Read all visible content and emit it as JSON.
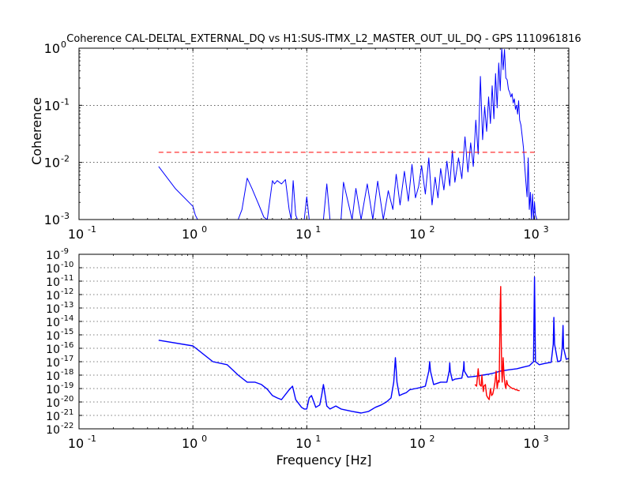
{
  "chart_data": [
    {
      "type": "line",
      "title": "Coherence CAL-DELTAL_EXTERNAL_DQ vs H1:SUS-ITMX_L2_MASTER_OUT_UL_DQ - GPS 1110961816",
      "xlabel": "",
      "ylabel": "Coherence",
      "xscale": "log",
      "yscale": "log",
      "xlim": [
        0.1,
        2000
      ],
      "ylim": [
        0.001,
        1
      ],
      "grid": true,
      "xticks": [
        {
          "base": "10",
          "exp": "-1",
          "value": 0.1
        },
        {
          "base": "10",
          "exp": "0",
          "value": 1
        },
        {
          "base": "10",
          "exp": "1",
          "value": 10
        },
        {
          "base": "10",
          "exp": "2",
          "value": 100
        },
        {
          "base": "10",
          "exp": "3",
          "value": 1000
        }
      ],
      "yticks": [
        {
          "base": "10",
          "exp": "-3",
          "value": 0.001
        },
        {
          "base": "10",
          "exp": "-2",
          "value": 0.01
        },
        {
          "base": "10",
          "exp": "-1",
          "value": 0.1
        },
        {
          "base": "10",
          "exp": "0",
          "value": 1
        }
      ],
      "series": [
        {
          "color": "#0000ff",
          "x": [
            0.5,
            0.7,
            1.0,
            1.05,
            1.1,
            2.5,
            2.7,
            3.0,
            3.3,
            3.8,
            4.2,
            4.5,
            5.0,
            5.2,
            5.5,
            6.0,
            6.5,
            7.0,
            7.3,
            7.6,
            8.0,
            8.3,
            9.5,
            10,
            10.5,
            14,
            15,
            16,
            20,
            21,
            25,
            27,
            30,
            34,
            38,
            42,
            47,
            52,
            57,
            61,
            66,
            72,
            78,
            84,
            90,
            96,
            102,
            110,
            118,
            126,
            134,
            142,
            150,
            160,
            170,
            180,
            190,
            200,
            215,
            230,
            245,
            260,
            275,
            290,
            305,
            320,
            335,
            350,
            365,
            380,
            395,
            410,
            425,
            440,
            455,
            470,
            485,
            500,
            515,
            530,
            545,
            560,
            575,
            590,
            605,
            620,
            635,
            650,
            665,
            680,
            695,
            710,
            725,
            740,
            760,
            780,
            800,
            820,
            840,
            860,
            880,
            900,
            920,
            940,
            960,
            980,
            1000,
            1020,
            1050
          ],
          "y": [
            0.0085,
            0.0035,
            0.0017,
            0.0012,
            0.001,
            0.001,
            0.0015,
            0.0053,
            0.0035,
            0.0018,
            0.0011,
            0.001,
            0.0048,
            0.0042,
            0.0048,
            0.0042,
            0.005,
            0.0015,
            0.001,
            0.0048,
            0.0012,
            0.001,
            0.001,
            0.0025,
            0.001,
            0.001,
            0.0042,
            0.001,
            0.001,
            0.0045,
            0.001,
            0.0035,
            0.001,
            0.0042,
            0.001,
            0.0047,
            0.001,
            0.0032,
            0.0015,
            0.0062,
            0.0018,
            0.007,
            0.0021,
            0.0092,
            0.0024,
            0.0038,
            0.0088,
            0.0028,
            0.012,
            0.0018,
            0.0055,
            0.0024,
            0.0078,
            0.0033,
            0.0105,
            0.0039,
            0.016,
            0.0045,
            0.012,
            0.0052,
            0.028,
            0.0068,
            0.022,
            0.0085,
            0.055,
            0.014,
            0.32,
            0.025,
            0.095,
            0.035,
            0.14,
            0.048,
            0.22,
            0.058,
            0.36,
            0.09,
            0.55,
            0.18,
            1.0,
            0.42,
            0.95,
            0.3,
            0.28,
            0.19,
            0.17,
            0.14,
            0.16,
            0.11,
            0.13,
            0.085,
            0.1,
            0.07,
            0.12,
            0.055,
            0.045,
            0.028,
            0.018,
            0.0085,
            0.0045,
            0.0025,
            0.012,
            0.0015,
            0.003,
            0.001,
            0.0028,
            0.001,
            0.002,
            0.0012,
            0.001
          ]
        },
        {
          "color": "#ff0000",
          "dashed": true,
          "x": [
            0.5,
            1050
          ],
          "y": [
            0.015,
            0.015
          ]
        }
      ]
    },
    {
      "type": "line",
      "title": "",
      "xlabel": "Frequency [Hz]",
      "ylabel": "",
      "xscale": "log",
      "yscale": "log",
      "xlim": [
        0.1,
        2000
      ],
      "ylim": [
        1e-22,
        1e-09
      ],
      "grid": true,
      "xticks": [
        {
          "base": "10",
          "exp": "-1",
          "value": 0.1
        },
        {
          "base": "10",
          "exp": "0",
          "value": 1
        },
        {
          "base": "10",
          "exp": "1",
          "value": 10
        },
        {
          "base": "10",
          "exp": "2",
          "value": 100
        },
        {
          "base": "10",
          "exp": "3",
          "value": 1000
        }
      ],
      "yticks": [
        {
          "base": "10",
          "exp": "-22",
          "value": 1e-22
        },
        {
          "base": "10",
          "exp": "-21",
          "value": 1e-21
        },
        {
          "base": "10",
          "exp": "-20",
          "value": 1e-20
        },
        {
          "base": "10",
          "exp": "-19",
          "value": 1e-19
        },
        {
          "base": "10",
          "exp": "-18",
          "value": 1e-18
        },
        {
          "base": "10",
          "exp": "-17",
          "value": 1e-17
        },
        {
          "base": "10",
          "exp": "-16",
          "value": 1e-16
        },
        {
          "base": "10",
          "exp": "-15",
          "value": 1e-15
        },
        {
          "base": "10",
          "exp": "-14",
          "value": 1e-14
        },
        {
          "base": "10",
          "exp": "-13",
          "value": 1e-13
        },
        {
          "base": "10",
          "exp": "-12",
          "value": 1e-12
        },
        {
          "base": "10",
          "exp": "-11",
          "value": 1e-11
        },
        {
          "base": "10",
          "exp": "-10",
          "value": 1e-10
        },
        {
          "base": "10",
          "exp": "-9",
          "value": 1e-09
        }
      ],
      "series": [
        {
          "color": "#0000ff",
          "x": [
            0.5,
            1.0,
            1.5,
            2.0,
            2.5,
            3.0,
            3.5,
            4.0,
            4.5,
            5.0,
            5.5,
            6.0,
            7.0,
            7.5,
            8.0,
            9.0,
            9.5,
            10.0,
            10.5,
            11.0,
            12.0,
            13.0,
            13.5,
            14.0,
            15.0,
            16.0,
            18.0,
            20.0,
            25.0,
            30.0,
            35.0,
            40.0,
            45.0,
            50.0,
            55.0,
            58.0,
            60.0,
            62.0,
            65.0,
            70.0,
            75.0,
            80.0,
            90.0,
            100.0,
            110.0,
            118.0,
            120.0,
            122.0,
            130.0,
            150.0,
            170.0,
            178.0,
            180.0,
            182.0,
            190.0,
            200.0,
            230.0,
            238.0,
            240.0,
            242.0,
            260.0,
            300.0,
            350.0,
            400.0,
            450.0,
            500.0,
            600.0,
            700.0,
            800.0,
            900.0,
            980.0,
            1000.0,
            1020.0,
            1100.0,
            1200.0,
            1300.0,
            1400.0,
            1460.0,
            1480.0,
            1500.0,
            1600.0,
            1700.0,
            1750.0,
            1780.0,
            1800.0,
            1900.0,
            2000.0
          ],
          "y": [
            4e-16,
            1.5e-16,
            1e-17,
            6e-18,
            1e-18,
            3e-19,
            3e-19,
            2e-19,
            9e-20,
            3e-20,
            2e-20,
            1.5e-20,
            8e-20,
            1.5e-19,
            1.5e-20,
            4e-21,
            3e-21,
            3e-21,
            2e-20,
            3e-20,
            4e-21,
            6e-21,
            3e-20,
            2e-19,
            5e-21,
            3e-21,
            5e-21,
            3e-21,
            2e-21,
            1.5e-21,
            2e-21,
            4e-21,
            6e-21,
            1e-20,
            2e-20,
            3e-19,
            2e-17,
            3e-19,
            3e-20,
            4e-20,
            5e-20,
            8e-20,
            1e-19,
            1.2e-19,
            1.5e-19,
            2e-18,
            1e-17,
            2e-18,
            2e-19,
            3e-19,
            3e-19,
            2e-18,
            8e-18,
            2e-18,
            4e-19,
            5e-19,
            6e-19,
            3e-18,
            1e-17,
            2e-18,
            7e-19,
            8e-19,
            1e-18,
            1.2e-18,
            1.5e-18,
            2e-18,
            2.5e-18,
            3e-18,
            4e-18,
            5e-18,
            1e-17,
            2e-11,
            1e-17,
            6e-18,
            7e-18,
            8e-18,
            9e-18,
            2e-16,
            2e-14,
            2e-16,
            1e-17,
            1.2e-17,
            1e-16,
            5e-15,
            1e-16,
            1.5e-17,
            1.8e-17
          ]
        },
        {
          "color": "#ff0000",
          "x": [
            300,
            310,
            320,
            330,
            340,
            345,
            350,
            355,
            360,
            370,
            380,
            390,
            400,
            410,
            420,
            430,
            440,
            450,
            460,
            470,
            480,
            490,
            500,
            505,
            510,
            515,
            520,
            530,
            540,
            550,
            560,
            570,
            580,
            600,
            620,
            640,
            660,
            680,
            700,
            720,
            740
          ],
          "y": [
            2e-19,
            1.5e-19,
            3e-18,
            2e-19,
            1.5e-19,
            1e-18,
            2e-19,
            6e-20,
            1.5e-19,
            2e-19,
            3e-20,
            2e-20,
            1.5e-20,
            1e-19,
            3e-20,
            4e-20,
            1e-19,
            3e-19,
            2e-18,
            1e-19,
            4e-19,
            3e-19,
            2e-13,
            4e-12,
            3e-16,
            2e-18,
            3e-19,
            2e-17,
            1e-18,
            2e-19,
            1e-19,
            4e-19,
            2e-19,
            1.5e-19,
            1.2e-19,
            1e-19,
            1e-19,
            8e-20,
            8e-20,
            7e-20,
            7e-20
          ]
        }
      ]
    }
  ]
}
